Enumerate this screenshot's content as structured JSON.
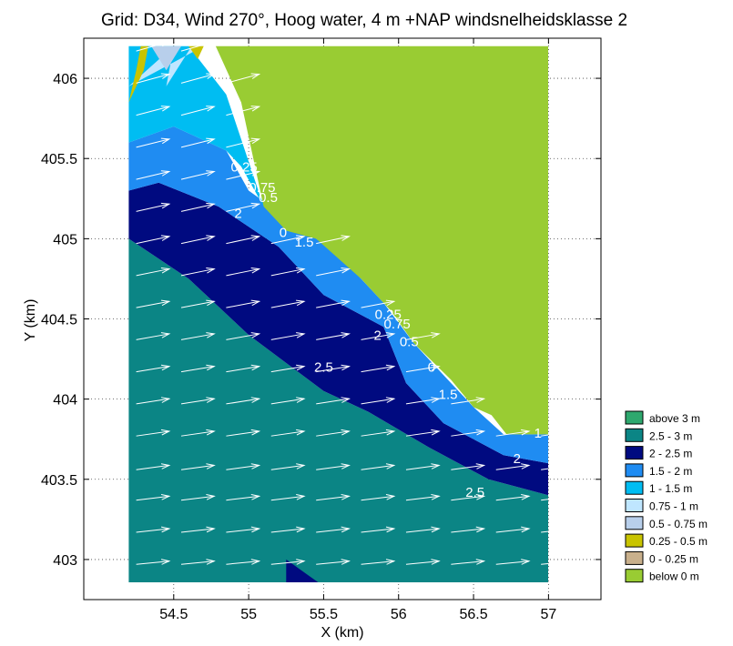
{
  "chart_data": {
    "type": "heatmap",
    "title": "Grid: D34, Wind 270°, Hoog water, 4 m +NAP windsnelheidsklasse 2",
    "xlabel": "X (km)",
    "ylabel": "Y (km)",
    "xlim": [
      53.9,
      57.35
    ],
    "ylim": [
      402.75,
      406.25
    ],
    "xticks": [
      "54.5",
      "55",
      "55.5",
      "56",
      "56.5",
      "57"
    ],
    "yticks": [
      "403",
      "403.5",
      "404",
      "404.5",
      "405",
      "405.5",
      "406"
    ],
    "grid": true,
    "legend_position": "right",
    "legend": [
      {
        "label": "above 3 m",
        "color": "#2ea86e"
      },
      {
        "label": "2.5 - 3 m",
        "color": "#0b8585"
      },
      {
        "label": "2 - 2.5 m",
        "color": "#000a80"
      },
      {
        "label": "1.5 - 2 m",
        "color": "#1f8cf2"
      },
      {
        "label": "1 - 1.5 m",
        "color": "#00bdf2"
      },
      {
        "label": "0.75 - 1 m",
        "color": "#bfe6ff"
      },
      {
        "label": "0.5 - 0.75 m",
        "color": "#b8cfeb"
      },
      {
        "label": "0.25 - 0.5 m",
        "color": "#c9c400"
      },
      {
        "label": "0 - 0.25 m",
        "color": "#c9b08c"
      },
      {
        "label": "below 0 m",
        "color": "#99cc33"
      }
    ],
    "regions": [
      {
        "class": "2.5 - 3 m",
        "polygon": [
          [
            54.2,
            402.8
          ],
          [
            57,
            402.8
          ],
          [
            57,
            403.4
          ],
          [
            56.6,
            403.5
          ],
          [
            56.2,
            403.7
          ],
          [
            55.8,
            403.92
          ],
          [
            55.5,
            404.05
          ],
          [
            55.0,
            404.4
          ],
          [
            54.6,
            404.75
          ],
          [
            54.2,
            405.0
          ]
        ]
      },
      {
        "class": "2 - 2.5 m",
        "polygon": [
          [
            55.25,
            402.8
          ],
          [
            55.55,
            402.8
          ],
          [
            55.4,
            402.9
          ],
          [
            55.25,
            403.0
          ]
        ]
      },
      {
        "class": "2 - 2.5 m",
        "polygon": [
          [
            54.2,
            405.0
          ],
          [
            54.6,
            404.75
          ],
          [
            55.0,
            404.4
          ],
          [
            55.5,
            404.05
          ],
          [
            55.8,
            403.92
          ],
          [
            56.2,
            403.7
          ],
          [
            56.6,
            403.5
          ],
          [
            57,
            403.4
          ],
          [
            57,
            403.6
          ],
          [
            56.7,
            403.65
          ],
          [
            56.3,
            403.85
          ],
          [
            56.05,
            404.1
          ],
          [
            55.9,
            404.45
          ],
          [
            55.5,
            404.65
          ],
          [
            55.2,
            404.95
          ],
          [
            54.8,
            405.2
          ],
          [
            54.4,
            405.35
          ],
          [
            54.2,
            405.3
          ]
        ]
      },
      {
        "class": "1.5 - 2 m",
        "polygon": [
          [
            54.2,
            405.3
          ],
          [
            54.4,
            405.35
          ],
          [
            54.8,
            405.2
          ],
          [
            55.2,
            404.95
          ],
          [
            55.5,
            404.65
          ],
          [
            55.9,
            404.45
          ],
          [
            56.05,
            404.1
          ],
          [
            56.3,
            403.85
          ],
          [
            56.7,
            403.65
          ],
          [
            57,
            403.6
          ],
          [
            57,
            403.78
          ],
          [
            56.7,
            403.78
          ],
          [
            56.5,
            403.95
          ],
          [
            56.3,
            404.15
          ],
          [
            56.1,
            404.35
          ],
          [
            55.9,
            404.6
          ],
          [
            55.6,
            404.9
          ],
          [
            55.3,
            405.1
          ],
          [
            55.0,
            405.3
          ],
          [
            54.85,
            405.55
          ],
          [
            54.5,
            405.7
          ],
          [
            54.2,
            405.6
          ]
        ]
      },
      {
        "class": "1 - 1.5 m",
        "polygon": [
          [
            54.2,
            405.6
          ],
          [
            54.5,
            405.7
          ],
          [
            54.85,
            405.55
          ],
          [
            54.95,
            405.45
          ],
          [
            55.1,
            405.2
          ],
          [
            54.85,
            405.9
          ],
          [
            54.6,
            406.2
          ],
          [
            54.2,
            406.2
          ]
        ]
      },
      {
        "class": "0.75 - 1 m",
        "polygon": [
          [
            54.2,
            405.95
          ],
          [
            54.5,
            406.2
          ],
          [
            54.45,
            405.95
          ],
          [
            54.62,
            406.2
          ],
          [
            54.7,
            406.2
          ]
        ]
      },
      {
        "class": "0.5 - 0.75 m",
        "polygon": [
          [
            54.35,
            406.2
          ],
          [
            54.45,
            406.05
          ],
          [
            54.55,
            406.2
          ]
        ]
      },
      {
        "class": "0.25 - 0.5 m",
        "polygon": [
          [
            54.2,
            405.85
          ],
          [
            54.3,
            406.05
          ],
          [
            54.33,
            406.2
          ],
          [
            54.28,
            406.2
          ],
          [
            54.25,
            406.05
          ]
        ]
      },
      {
        "class": "0.25 - 0.5 m",
        "polygon": [
          [
            54.6,
            406.2
          ],
          [
            54.66,
            406.12
          ],
          [
            54.7,
            406.2
          ]
        ]
      },
      {
        "class": "below 0 m",
        "polygon": [
          [
            54.78,
            406.2
          ],
          [
            57,
            406.2
          ],
          [
            57,
            403.78
          ],
          [
            56.72,
            403.78
          ],
          [
            56.62,
            403.9
          ],
          [
            56.5,
            403.95
          ],
          [
            56.35,
            404.12
          ],
          [
            56.1,
            404.35
          ],
          [
            55.95,
            404.55
          ],
          [
            55.75,
            404.75
          ],
          [
            55.45,
            405.0
          ],
          [
            55.25,
            405.05
          ],
          [
            55.1,
            405.2
          ],
          [
            54.95,
            405.85
          ]
        ]
      }
    ],
    "contour_labels": [
      {
        "text": "0.25",
        "x": 54.97,
        "y": 405.42
      },
      {
        "text": "0.75",
        "x": 55.09,
        "y": 405.29
      },
      {
        "text": "0.5",
        "x": 55.13,
        "y": 405.23
      },
      {
        "text": "2",
        "x": 54.93,
        "y": 405.13
      },
      {
        "text": "0",
        "x": 55.23,
        "y": 405.01
      },
      {
        "text": "1.5",
        "x": 55.37,
        "y": 404.95
      },
      {
        "text": "0.25",
        "x": 55.93,
        "y": 404.5
      },
      {
        "text": "0.75",
        "x": 55.99,
        "y": 404.44
      },
      {
        "text": "2",
        "x": 55.86,
        "y": 404.37
      },
      {
        "text": "0.5",
        "x": 56.07,
        "y": 404.33
      },
      {
        "text": "2.5",
        "x": 55.5,
        "y": 404.17
      },
      {
        "text": "0",
        "x": 56.22,
        "y": 404.17
      },
      {
        "text": "1.5",
        "x": 56.33,
        "y": 404.0
      },
      {
        "text": "1",
        "x": 56.93,
        "y": 403.76
      },
      {
        "text": "2",
        "x": 56.79,
        "y": 403.6
      },
      {
        "text": "2.5",
        "x": 56.51,
        "y": 403.39
      }
    ],
    "wind_vectors": {
      "direction_deg": 270,
      "rows_y": [
        402.97,
        403.17,
        403.37,
        403.56,
        403.77,
        403.97,
        404.17,
        404.37,
        404.57,
        404.77,
        404.97,
        405.17,
        405.37,
        405.57,
        405.77,
        405.97,
        406.17
      ],
      "cols_x": [
        54.25,
        54.55,
        54.85,
        55.15,
        55.45,
        55.75,
        56.05,
        56.35,
        56.65,
        56.95
      ],
      "dx": 0.22,
      "dy_slope": 0.02
    }
  }
}
